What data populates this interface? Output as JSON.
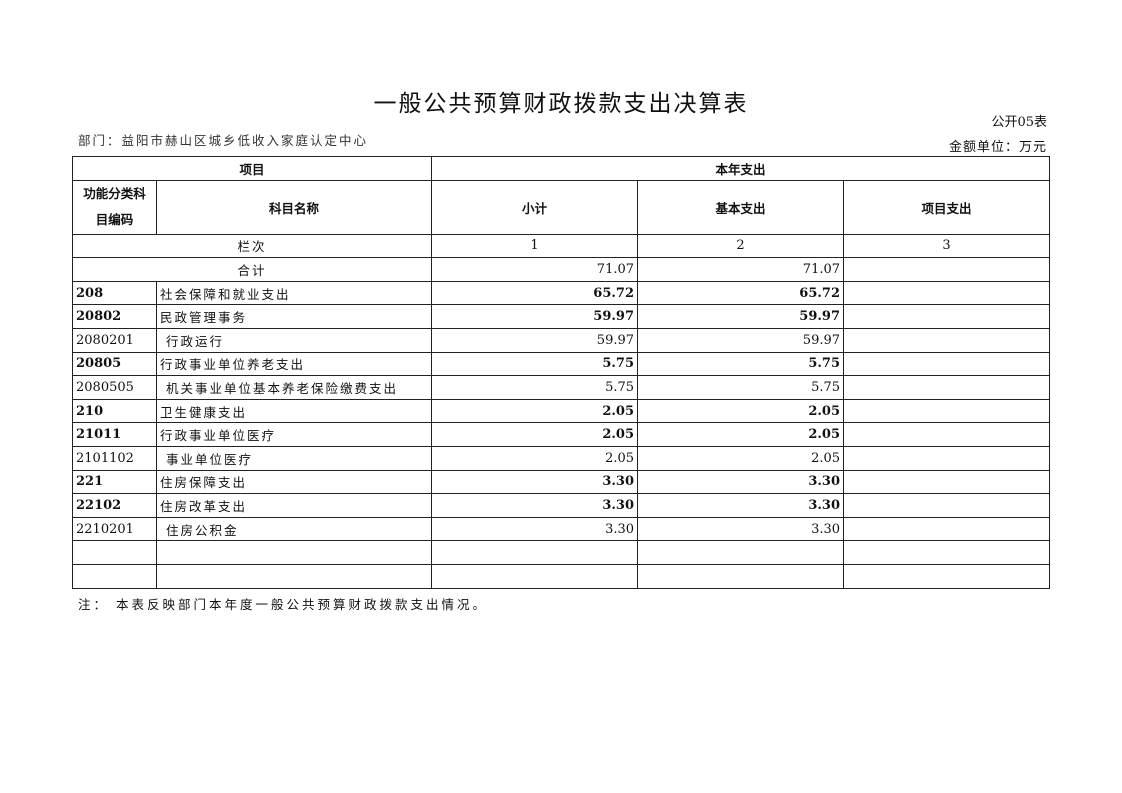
{
  "title": "一般公共预算财政拨款支出决算表",
  "table_no": "公开05表",
  "department": "部门：益阳市赫山区城乡低收入家庭认定中心",
  "unit": "金额单位：万元",
  "header": {
    "project": "项目",
    "current_year": "本年支出",
    "code": "功能分类科目编码",
    "name": "科目名称",
    "subtotal": "小计",
    "basic": "基本支出",
    "project_exp": "项目支出",
    "column_no": "栏次",
    "col1": "1",
    "col2": "2",
    "col3": "3"
  },
  "total": {
    "label": "合计",
    "subtotal": "71.07",
    "basic": "71.07",
    "project": ""
  },
  "rows": [
    {
      "code": "208",
      "name": "社会保障和就业支出",
      "subtotal": "65.72",
      "basic": "65.72",
      "project": "",
      "bold": true
    },
    {
      "code": "20802",
      "name": "民政管理事务",
      "subtotal": "59.97",
      "basic": "59.97",
      "project": "",
      "bold": true
    },
    {
      "code": "2080201",
      "name": " 行政运行",
      "subtotal": "59.97",
      "basic": "59.97",
      "project": "",
      "bold": false
    },
    {
      "code": "20805",
      "name": "行政事业单位养老支出",
      "subtotal": "5.75",
      "basic": "5.75",
      "project": "",
      "bold": true
    },
    {
      "code": "2080505",
      "name": " 机关事业单位基本养老保险缴费支出",
      "subtotal": "5.75",
      "basic": "5.75",
      "project": "",
      "bold": false
    },
    {
      "code": "210",
      "name": "卫生健康支出",
      "subtotal": "2.05",
      "basic": "2.05",
      "project": "",
      "bold": true
    },
    {
      "code": "21011",
      "name": "行政事业单位医疗",
      "subtotal": "2.05",
      "basic": "2.05",
      "project": "",
      "bold": true
    },
    {
      "code": "2101102",
      "name": " 事业单位医疗",
      "subtotal": "2.05",
      "basic": "2.05",
      "project": "",
      "bold": false
    },
    {
      "code": "221",
      "name": "住房保障支出",
      "subtotal": "3.30",
      "basic": "3.30",
      "project": "",
      "bold": true
    },
    {
      "code": "22102",
      "name": "住房改革支出",
      "subtotal": "3.30",
      "basic": "3.30",
      "project": "",
      "bold": true
    },
    {
      "code": "2210201",
      "name": " 住房公积金",
      "subtotal": "3.30",
      "basic": "3.30",
      "project": "",
      "bold": false
    },
    {
      "code": "",
      "name": "",
      "subtotal": "",
      "basic": "",
      "project": "",
      "bold": false
    },
    {
      "code": "",
      "name": "",
      "subtotal": "",
      "basic": "",
      "project": "",
      "bold": false
    }
  ],
  "note": "注： 本表反映部门本年度一般公共预算财政拨款支出情况。"
}
